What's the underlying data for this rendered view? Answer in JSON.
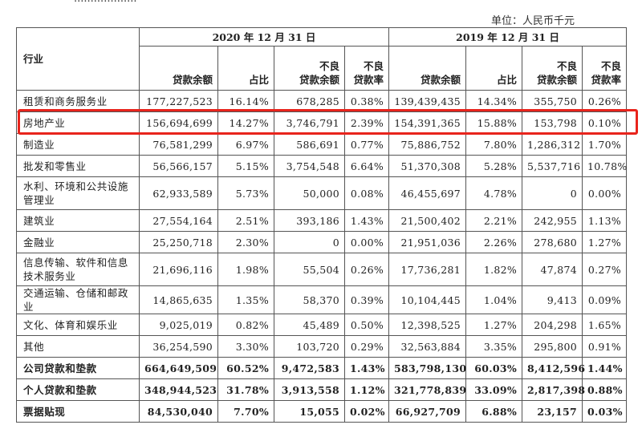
{
  "top_text": "...................",
  "unit_label": "单位：人民币千元",
  "header": {
    "industry": "行业",
    "period_2020": "2020 年 12 月 31 日",
    "period_2019": "2019 年 12 月 31 日",
    "loan_balance": "贷款余额",
    "share": "占比",
    "npl_balance_line1": "不良",
    "npl_balance_line2": "贷款余额",
    "npl_ratio_line1": "不良",
    "npl_ratio_line2": "贷款率"
  },
  "rows": [
    {
      "industry": "租赁和商务服务业",
      "v": [
        "177,227,523",
        "16.14%",
        "678,285",
        "0.38%",
        "139,439,435",
        "14.34%",
        "355,750",
        "0.26%"
      ]
    },
    {
      "industry": "房地产业",
      "v": [
        "156,694,699",
        "14.27%",
        "3,746,791",
        "2.39%",
        "154,391,365",
        "15.88%",
        "153,798",
        "0.10%"
      ]
    },
    {
      "industry": "制造业",
      "v": [
        "76,581,299",
        "6.97%",
        "586,691",
        "0.77%",
        "75,886,752",
        "7.80%",
        "1,286,312",
        "1.70%"
      ]
    },
    {
      "industry": "批发和零售业",
      "v": [
        "56,566,157",
        "5.15%",
        "3,754,548",
        "6.64%",
        "51,370,308",
        "5.28%",
        "5,537,716",
        "10.78%"
      ]
    },
    {
      "industry": "水利、环境和公共设施管理业",
      "v": [
        "62,933,589",
        "5.73%",
        "50,000",
        "0.08%",
        "46,455,697",
        "4.78%",
        "0",
        "0.00%"
      ]
    },
    {
      "industry": "建筑业",
      "v": [
        "27,554,164",
        "2.51%",
        "393,186",
        "1.43%",
        "21,500,402",
        "2.21%",
        "242,955",
        "1.13%"
      ]
    },
    {
      "industry": "金融业",
      "v": [
        "25,250,718",
        "2.30%",
        "0",
        "0.00%",
        "21,951,036",
        "2.26%",
        "278,680",
        "1.27%"
      ]
    },
    {
      "industry": "信息传输、软件和信息技术服务业",
      "v": [
        "21,696,116",
        "1.98%",
        "55,504",
        "0.26%",
        "17,736,281",
        "1.82%",
        "47,874",
        "0.27%"
      ]
    },
    {
      "industry": "交通运输、仓储和邮政业",
      "v": [
        "14,865,635",
        "1.35%",
        "58,370",
        "0.39%",
        "10,104,445",
        "1.04%",
        "9,413",
        "0.09%"
      ]
    },
    {
      "industry": "文化、体育和娱乐业",
      "v": [
        "9,025,019",
        "0.82%",
        "45,489",
        "0.50%",
        "12,398,525",
        "1.27%",
        "204,298",
        "1.65%"
      ]
    },
    {
      "industry": "其他",
      "v": [
        "36,254,590",
        "3.30%",
        "103,720",
        "0.29%",
        "32,563,884",
        "3.35%",
        "295,800",
        "0.91%"
      ]
    },
    {
      "industry": "公司贷款和垫款",
      "v": [
        "664,649,509",
        "60.52%",
        "9,472,583",
        "1.43%",
        "583,798,130",
        "60.03%",
        "8,412,596",
        "1.44%"
      ]
    },
    {
      "industry": "个人贷款和垫款",
      "v": [
        "348,944,523",
        "31.78%",
        "3,913,558",
        "1.12%",
        "321,778,839",
        "33.09%",
        "2,817,398",
        "0.88%"
      ]
    },
    {
      "industry": "票据贴现",
      "v": [
        "84,530,040",
        "7.70%",
        "15,055",
        "0.02%",
        "66,927,709",
        "6.88%",
        "23,157",
        "0.03%"
      ]
    }
  ],
  "highlight_color": "#e8241c"
}
